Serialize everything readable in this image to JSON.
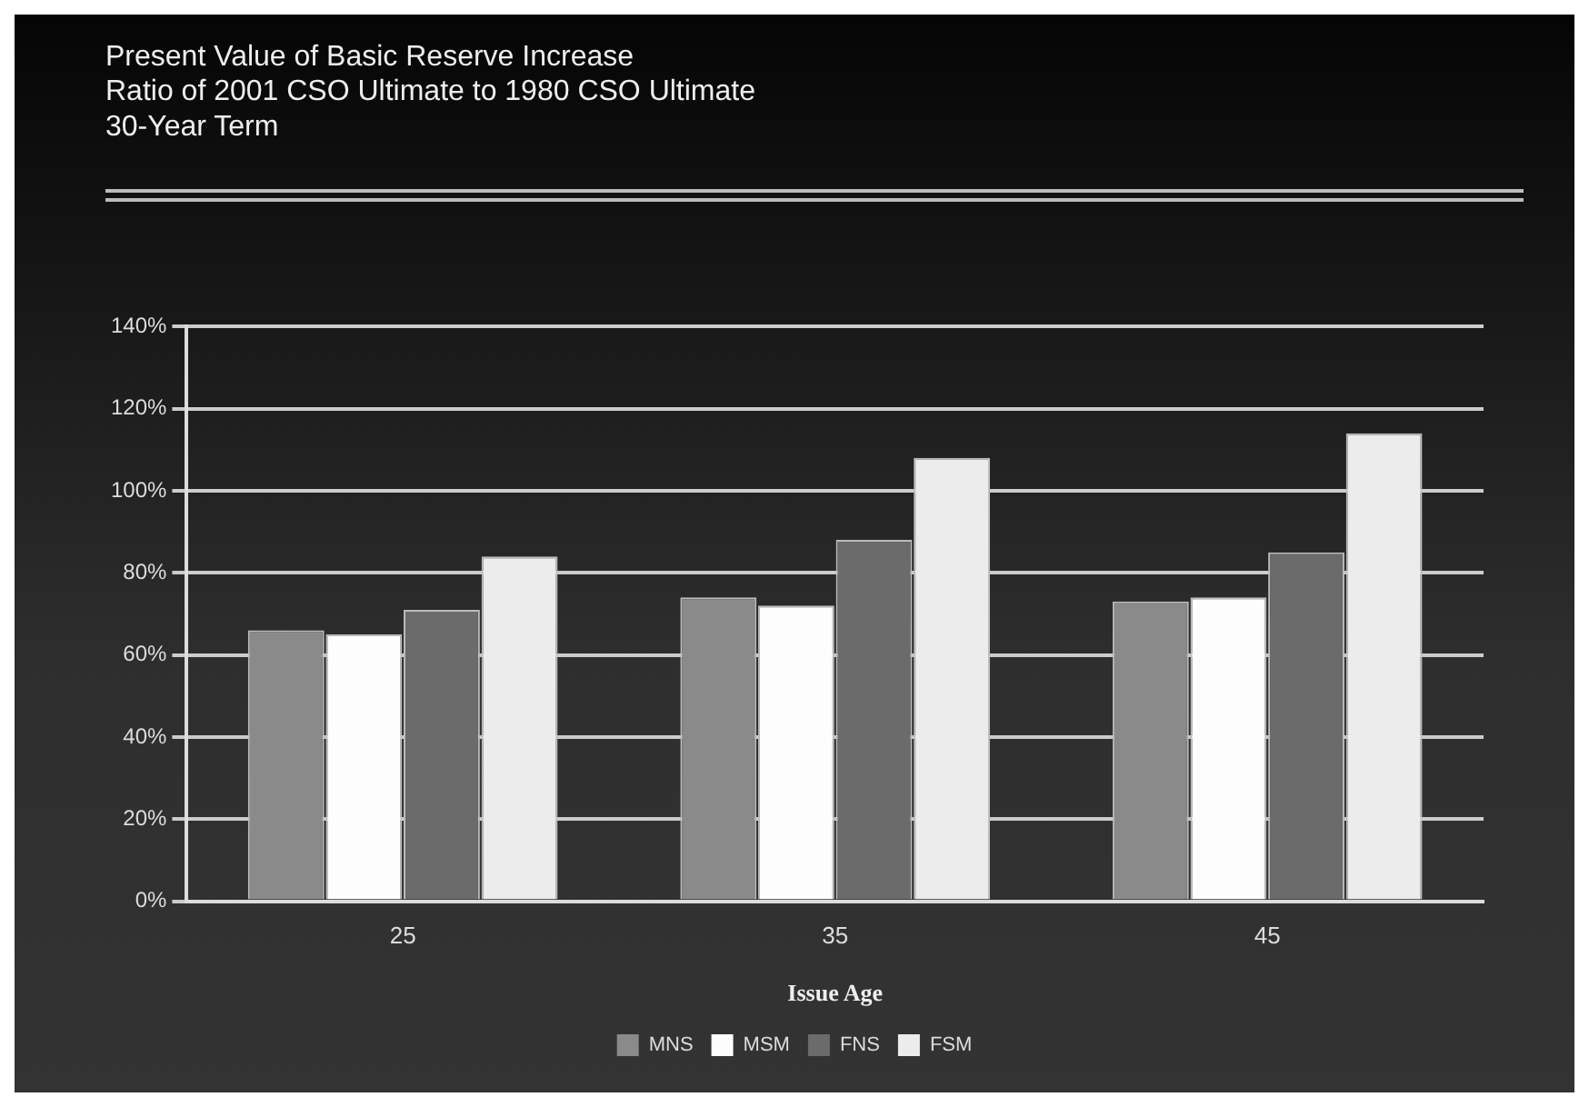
{
  "chart_data": {
    "type": "bar",
    "title": "Present Value of Basic Reserve Increase\nRatio of 2001 CSO Ultimate to 1980 CSO Ultimate\n30-Year Term",
    "xlabel": "Issue Age",
    "categories": [
      "25",
      "35",
      "45"
    ],
    "series": [
      {
        "name": "MNS",
        "color": "#8a8a8a",
        "values": [
          66,
          74,
          73
        ]
      },
      {
        "name": "MSM",
        "color": "#fdfdfd",
        "values": [
          65,
          72,
          74
        ]
      },
      {
        "name": "FNS",
        "color": "#6b6b6b",
        "values": [
          71,
          88,
          85
        ]
      },
      {
        "name": "FSM",
        "color": "#ececec",
        "values": [
          84,
          108,
          114
        ]
      }
    ],
    "ylim": [
      0,
      140
    ],
    "yticks": [
      {
        "value": 0,
        "label": "0%"
      },
      {
        "value": 20,
        "label": "20%"
      },
      {
        "value": 40,
        "label": "40%"
      },
      {
        "value": 60,
        "label": "60%"
      },
      {
        "value": 80,
        "label": "80%"
      },
      {
        "value": 100,
        "label": "100%"
      },
      {
        "value": 120,
        "label": "120%"
      },
      {
        "value": 140,
        "label": "140%"
      }
    ],
    "grid": "y",
    "legend": "bottom"
  }
}
